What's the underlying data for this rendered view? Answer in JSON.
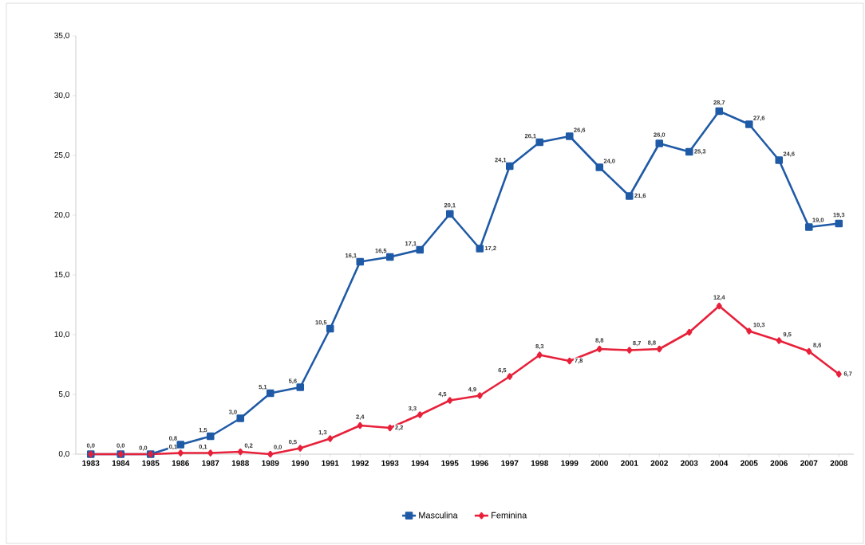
{
  "chart_data": {
    "type": "line",
    "categories": [
      "1983",
      "1984",
      "1985",
      "1986",
      "1987",
      "1988",
      "1989",
      "1990",
      "1991",
      "1992",
      "1993",
      "1994",
      "1995",
      "1996",
      "1997",
      "1998",
      "1999",
      "2000",
      "2001",
      "2002",
      "2003",
      "2004",
      "2005",
      "2006",
      "2007",
      "2008"
    ],
    "series": [
      {
        "name": "Masculina",
        "color": "#1f5aa6",
        "marker": "square",
        "values": [
          0.0,
          0.0,
          0.0,
          0.8,
          1.5,
          3.0,
          5.1,
          5.6,
          10.5,
          16.1,
          16.5,
          17.1,
          20.1,
          17.2,
          24.1,
          26.1,
          26.6,
          24.0,
          21.6,
          26.0,
          25.3,
          28.7,
          27.6,
          24.6,
          19.0,
          19.3
        ],
        "value_labels": [
          "0,0",
          "0,0",
          "0,0",
          "0,8",
          "1,5",
          "3,0",
          "5,1",
          "5,6",
          "10,5",
          "16,1",
          "16,5",
          "17,1",
          "20,1",
          "17,2",
          "24,1",
          "26,1",
          "26,6",
          "24,0",
          "21,6",
          "26,0",
          "25,3",
          "28,7",
          "27,6",
          "24,6",
          "19,0",
          "19,3"
        ]
      },
      {
        "name": "Feminina",
        "color": "#e8203a",
        "marker": "diamond",
        "values": [
          0.0,
          0.0,
          0.0,
          0.1,
          0.1,
          0.2,
          0.0,
          0.5,
          1.3,
          2.4,
          2.2,
          3.3,
          4.5,
          4.9,
          6.5,
          8.3,
          7.8,
          8.8,
          8.7,
          8.8,
          10.2,
          12.4,
          10.3,
          9.5,
          8.6,
          6.7
        ],
        "value_labels": [
          null,
          null,
          null,
          "0,1",
          "0,1",
          "0,2",
          "0,0",
          "0,5",
          "1,3",
          "2,4",
          "2,2",
          "3,3",
          "4,5",
          "4,9",
          "6,5",
          "8,3",
          "7,8",
          "8,8",
          "8,7",
          "8,8",
          null,
          "12,4",
          "10,3",
          "9,5",
          "8,6",
          "6,7"
        ]
      }
    ],
    "ylim": [
      0,
      35
    ],
    "yticks": [
      {
        "value": 0,
        "label": "0,0"
      },
      {
        "value": 5,
        "label": "5,0"
      },
      {
        "value": 10,
        "label": "10,0"
      },
      {
        "value": 15,
        "label": "15,0"
      },
      {
        "value": 20,
        "label": "20,0"
      },
      {
        "value": 25,
        "label": "25,0"
      },
      {
        "value": 30,
        "label": "30,0"
      },
      {
        "value": 35,
        "label": "35,0"
      }
    ],
    "legend": "bottom",
    "line_style": "solid"
  }
}
